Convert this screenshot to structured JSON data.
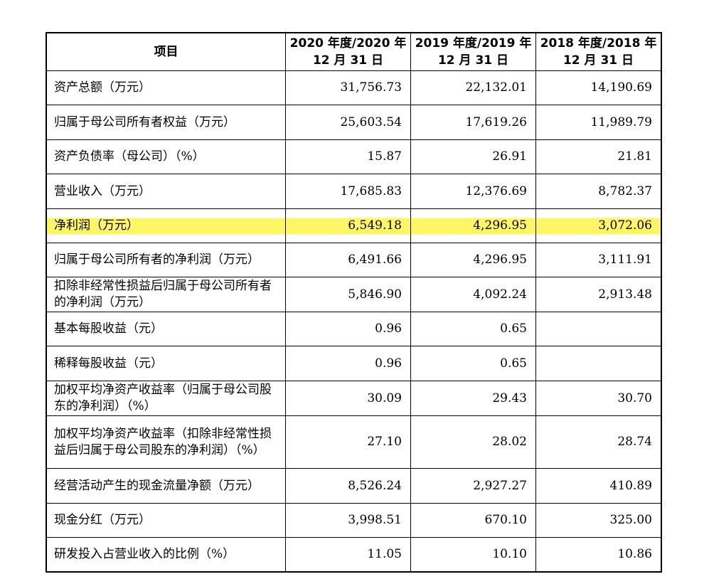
{
  "table": {
    "headers": [
      {
        "line1": "项目",
        "line2": ""
      },
      {
        "line1": "2020 年度/2020 年",
        "line2": "12 月 31 日"
      },
      {
        "line1": "2019 年度/2019 年",
        "line2": "12 月 31 日"
      },
      {
        "line1": "2018 年度/2018 年",
        "line2": "12 月 31 日"
      }
    ],
    "rows": [
      {
        "label": "资产总额（万元）",
        "v2020": "31,756.73",
        "v2019": "22,132.01",
        "v2018": "14,190.69"
      },
      {
        "label": "归属于母公司所有者权益（万元）",
        "v2020": "25,603.54",
        "v2019": "17,619.26",
        "v2018": "11,989.79"
      },
      {
        "label": "资产负债率（母公司）（%）",
        "v2020": "15.87",
        "v2019": "26.91",
        "v2018": "21.81"
      },
      {
        "label": "营业收入（万元）",
        "v2020": "17,685.83",
        "v2019": "12,376.69",
        "v2018": "8,782.37"
      },
      {
        "label": "净利润（万元）",
        "v2020": "6,549.18",
        "v2019": "4,296.95",
        "v2018": "3,072.06",
        "highlight_color": "#fff566"
      },
      {
        "label": "归属于母公司所有者的净利润（万元）",
        "v2020": "6,491.66",
        "v2019": "4,296.95",
        "v2018": "3,111.91"
      },
      {
        "label": "扣除非经常性损益后归属于母公司所有者的净利润（万元）",
        "v2020": "5,846.90",
        "v2019": "4,092.24",
        "v2018": "2,913.48"
      },
      {
        "label": "基本每股收益（元）",
        "v2020": "0.96",
        "v2019": "0.65",
        "v2018": ""
      },
      {
        "label": "稀释每股收益（元）",
        "v2020": "0.96",
        "v2019": "0.65",
        "v2018": ""
      },
      {
        "label": "加权平均净资产收益率（归属于母公司股东的净利润）（%）",
        "v2020": "30.09",
        "v2019": "29.43",
        "v2018": "30.70"
      },
      {
        "label": "加权平均净资产收益率（扣除非经常性损益后归属于母公司股东的净利润）（%）",
        "v2020": "27.10",
        "v2019": "28.02",
        "v2018": "28.74"
      },
      {
        "label": "经营活动产生的现金流量净额（万元）",
        "v2020": "8,526.24",
        "v2019": "2,927.27",
        "v2018": "410.89"
      },
      {
        "label": "现金分红（万元）",
        "v2020": "3,998.51",
        "v2019": "670.10",
        "v2018": "325.00"
      },
      {
        "label": "研发投入占营业收入的比例（%）",
        "v2020": "11.05",
        "v2019": "10.10",
        "v2018": "10.86"
      }
    ]
  }
}
